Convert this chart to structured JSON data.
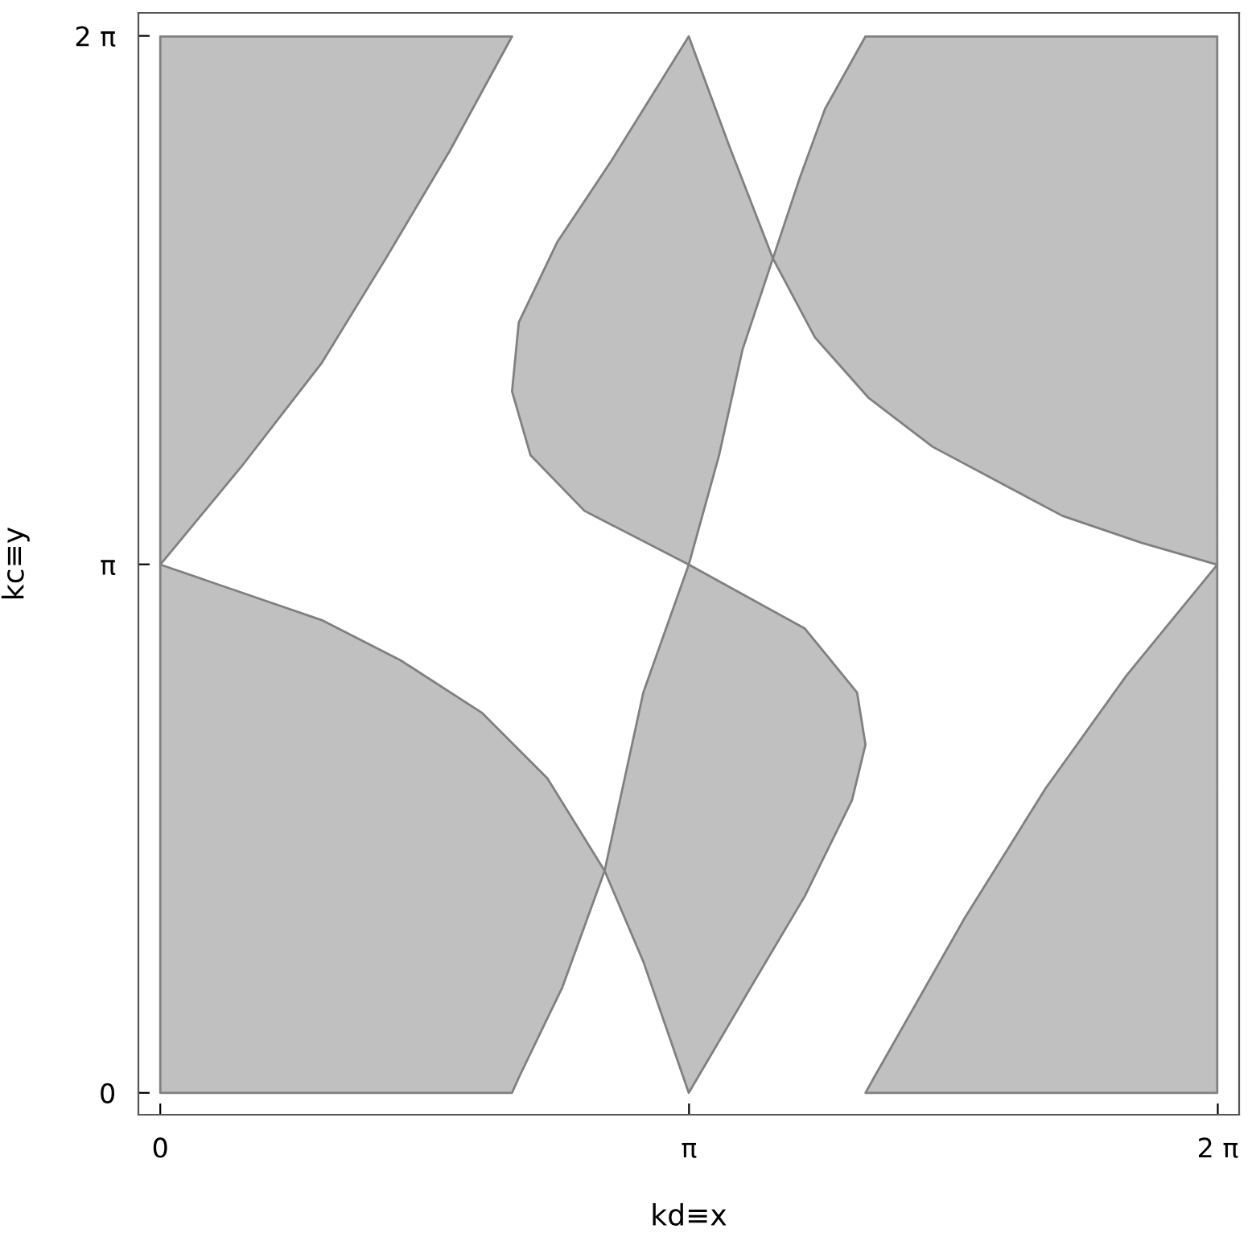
{
  "chart_data": {
    "type": "area",
    "xlabel": "kd≡x",
    "ylabel": "kc≡y",
    "xlim": [
      -0.13,
      6.41
    ],
    "ylim": [
      -0.13,
      6.42
    ],
    "xticks": [
      0,
      {
        "value": 3.1416,
        "label": "π"
      },
      {
        "value": 6.2832,
        "label": "2 π"
      }
    ],
    "yticks": [
      0,
      {
        "value": 3.1416,
        "label": "π"
      },
      {
        "value": 6.2832,
        "label": "2 π"
      }
    ],
    "grid": false,
    "series": [
      {
        "color": "#c0c0c0",
        "x": [
          0,
          2.09,
          1.72,
          1.34,
          0.96,
          0.48,
          0
        ],
        "values": [
          6.28,
          6.28,
          5.6,
          4.96,
          4.34,
          3.72,
          3.14
        ]
      },
      {
        "color": "#c0c0c0",
        "x": [
          0,
          0.96,
          1.43,
          1.91,
          2.3,
          2.64,
          2.39,
          2.13,
          2.09,
          0
        ],
        "values": [
          3.14,
          2.81,
          2.57,
          2.26,
          1.87,
          1.32,
          0.63,
          0.09,
          0,
          0
        ]
      },
      {
        "color": "#c0c0c0",
        "x": [
          3.14,
          3.83,
          4.14,
          4.19,
          4.11,
          3.83,
          3.51,
          3.14,
          2.87,
          2.64,
          2.87
        ],
        "values": [
          3.14,
          2.76,
          2.38,
          2.07,
          1.74,
          1.17,
          0.63,
          0,
          0.78,
          1.32,
          2.38
        ]
      },
      {
        "color": "#c0c0c0",
        "x": [
          3.14,
          3.38,
          3.64,
          3.46,
          3.32,
          3.14,
          2.52,
          2.2,
          2.09,
          2.13,
          2.36,
          2.68
        ],
        "values": [
          6.28,
          5.63,
          4.96,
          4.42,
          3.79,
          3.14,
          3.46,
          3.79,
          4.17,
          4.58,
          5.06,
          5.54
        ]
      },
      {
        "color": "#c0c0c0",
        "x": [
          4.19,
          6.28,
          6.28,
          5.83,
          5.36,
          4.59,
          4.21,
          3.89,
          3.64,
          3.8,
          3.95
        ],
        "values": [
          6.28,
          6.28,
          3.14,
          3.27,
          3.43,
          3.84,
          4.13,
          4.49,
          4.96,
          5.44,
          5.85
        ]
      },
      {
        "color": "#c0c0c0",
        "x": [
          6.28,
          6.28,
          4.19,
          4.24,
          4.78,
          5.26,
          5.74
        ],
        "values": [
          3.14,
          0,
          0,
          0.09,
          1.04,
          1.81,
          2.48
        ]
      }
    ]
  }
}
